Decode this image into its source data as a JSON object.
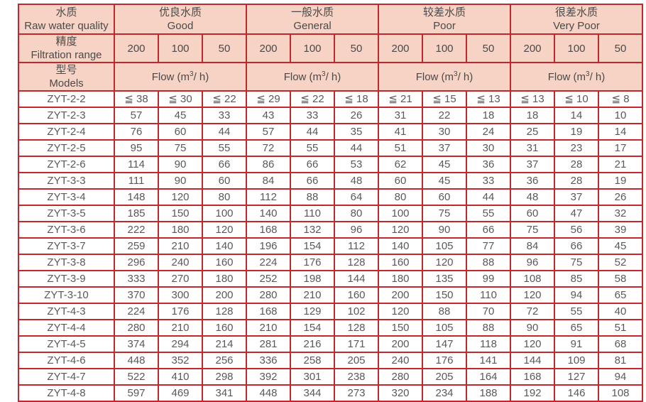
{
  "colors": {
    "border": "#c1272d",
    "header_bg": "#f6d3c5",
    "header_text": "#4a4a4a",
    "body_text": "#595959",
    "page_bg": "#ffffff"
  },
  "header": {
    "corner_row1": {
      "zh": "水质",
      "en": "Raw water quality"
    },
    "corner_row2": {
      "zh": "精度",
      "en": "Filtration range"
    },
    "corner_row3": {
      "zh": "型号",
      "en": "Models"
    },
    "quality_groups": [
      {
        "zh": "优良水质",
        "en": "Good"
      },
      {
        "zh": "一般水质",
        "en": "General"
      },
      {
        "zh": "较差水质",
        "en": "Poor"
      },
      {
        "zh": "很差水质",
        "en": "Very Poor"
      }
    ],
    "filtration_columns": [
      "200",
      "100",
      "50"
    ],
    "flow_label": {
      "pre": "Flow (m",
      "sup": "3",
      "post": "/ h)"
    }
  },
  "rows": [
    {
      "model": "ZYT-2-2",
      "values": [
        "≦ 38",
        "≦ 30",
        "≦ 22",
        "≦ 29",
        "≦ 22",
        "≦ 18",
        "≦ 21",
        "≦ 15",
        "≦ 13",
        "≦ 13",
        "≦ 10",
        "≦ 8"
      ]
    },
    {
      "model": "ZYT-2-3",
      "values": [
        "57",
        "45",
        "33",
        "43",
        "33",
        "26",
        "31",
        "22",
        "18",
        "18",
        "14",
        "10"
      ]
    },
    {
      "model": "ZYT-2-4",
      "values": [
        "76",
        "60",
        "44",
        "57",
        "44",
        "35",
        "41",
        "30",
        "24",
        "25",
        "19",
        "14"
      ]
    },
    {
      "model": "ZYT-2-5",
      "values": [
        "95",
        "75",
        "55",
        "72",
        "55",
        "44",
        "51",
        "37",
        "30",
        "31",
        "23",
        "17"
      ]
    },
    {
      "model": "ZYT-2-6",
      "values": [
        "114",
        "90",
        "66",
        "86",
        "66",
        "53",
        "62",
        "45",
        "36",
        "37",
        "28",
        "21"
      ]
    },
    {
      "model": "ZYT-3-3",
      "values": [
        "111",
        "90",
        "60",
        "84",
        "66",
        "48",
        "60",
        "45",
        "33",
        "36",
        "28",
        "19"
      ]
    },
    {
      "model": "ZYT-3-4",
      "values": [
        "148",
        "120",
        "80",
        "112",
        "88",
        "64",
        "80",
        "60",
        "44",
        "48",
        "37",
        "26"
      ]
    },
    {
      "model": "ZYT-3-5",
      "values": [
        "185",
        "150",
        "100",
        "140",
        "110",
        "80",
        "100",
        "75",
        "55",
        "60",
        "47",
        "32"
      ]
    },
    {
      "model": "ZYT-3-6",
      "values": [
        "222",
        "180",
        "120",
        "168",
        "132",
        "96",
        "120",
        "90",
        "66",
        "75",
        "56",
        "39"
      ]
    },
    {
      "model": "ZYT-3-7",
      "values": [
        "259",
        "210",
        "140",
        "196",
        "154",
        "112",
        "140",
        "105",
        "77",
        "84",
        "66",
        "45"
      ]
    },
    {
      "model": "ZYT-3-8",
      "values": [
        "296",
        "240",
        "160",
        "224",
        "176",
        "128",
        "160",
        "120",
        "88",
        "96",
        "75",
        "52"
      ]
    },
    {
      "model": "ZYT-3-9",
      "values": [
        "333",
        "270",
        "180",
        "252",
        "198",
        "144",
        "180",
        "135",
        "99",
        "108",
        "85",
        "58"
      ]
    },
    {
      "model": "ZYT-3-10",
      "values": [
        "370",
        "300",
        "200",
        "280",
        "210",
        "160",
        "200",
        "150",
        "110",
        "120",
        "94",
        "65"
      ]
    },
    {
      "model": "ZYT-4-3",
      "values": [
        "224",
        "176",
        "128",
        "168",
        "129",
        "102",
        "120",
        "88",
        "70",
        "72",
        "55",
        "40"
      ]
    },
    {
      "model": "ZYT-4-4",
      "values": [
        "280",
        "210",
        "160",
        "210",
        "154",
        "128",
        "150",
        "105",
        "88",
        "90",
        "65",
        "51"
      ]
    },
    {
      "model": "ZYT-4-5",
      "values": [
        "374",
        "294",
        "214",
        "281",
        "216",
        "171",
        "200",
        "147",
        "118",
        "120",
        "91",
        "68"
      ]
    },
    {
      "model": "ZYT-4-6",
      "values": [
        "448",
        "352",
        "256",
        "336",
        "258",
        "205",
        "240",
        "176",
        "141",
        "144",
        "109",
        "81"
      ]
    },
    {
      "model": "ZYT-4-7",
      "values": [
        "522",
        "410",
        "298",
        "392",
        "301",
        "238",
        "280",
        "205",
        "164",
        "168",
        "127",
        "94"
      ]
    },
    {
      "model": "ZYT-4-8",
      "values": [
        "597",
        "469",
        "341",
        "448",
        "344",
        "273",
        "320",
        "234",
        "188",
        "192",
        "146",
        "108"
      ]
    }
  ]
}
